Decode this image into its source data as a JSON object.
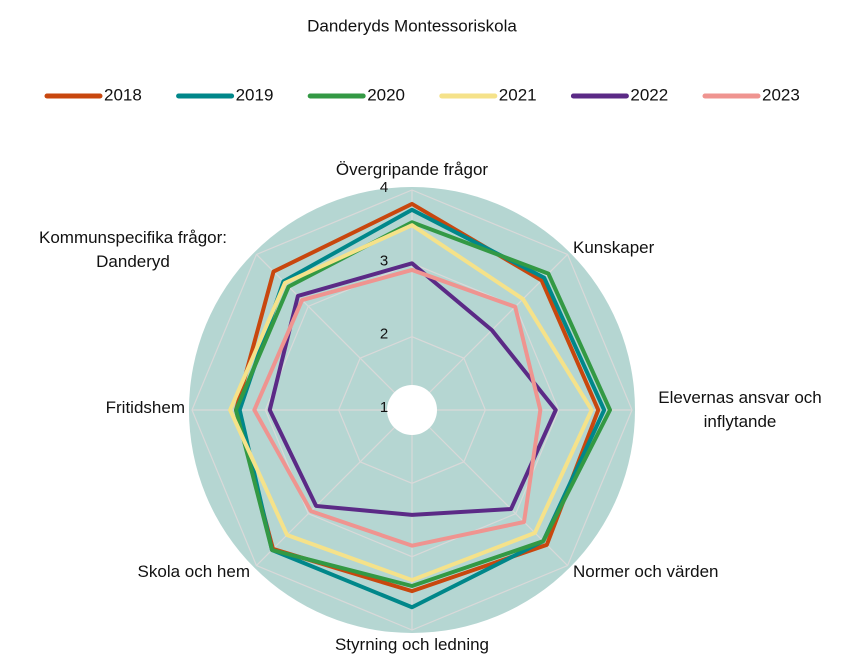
{
  "chart_data": {
    "type": "radar",
    "title": "Danderyds Montessoriskola",
    "categories": [
      "Övergripande frågor",
      "Kunskaper",
      "Elevernas ansvar och inflytande",
      "Normer och värden",
      "Styrning och ledning",
      "Skola och hem",
      "Fritidshem",
      "Kommunspecifika frågor: Danderyd"
    ],
    "rlim": [
      1,
      4
    ],
    "rticks": [
      1,
      2,
      3,
      4
    ],
    "grid": true,
    "legend": "top",
    "background": "#b5d6d2",
    "series": [
      {
        "name": "2018",
        "color": "#c8470e",
        "values": [
          3.81,
          3.5,
          3.54,
          3.6,
          3.47,
          3.68,
          3.4,
          3.67
        ]
      },
      {
        "name": "2019",
        "color": "#00878a",
        "values": [
          3.73,
          3.55,
          3.62,
          3.53,
          3.69,
          3.7,
          3.35,
          3.48
        ]
      },
      {
        "name": "2020",
        "color": "#339944",
        "values": [
          3.56,
          3.63,
          3.7,
          3.53,
          3.4,
          3.7,
          3.4,
          3.38
        ]
      },
      {
        "name": "2021",
        "color": "#f5e28a",
        "values": [
          3.52,
          3.14,
          3.45,
          3.37,
          3.32,
          3.41,
          3.48,
          3.45
        ]
      },
      {
        "name": "2022",
        "color": "#5b2a86",
        "values": [
          3.0,
          2.54,
          2.96,
          2.91,
          2.43,
          2.85,
          2.94,
          3.2
        ]
      },
      {
        "name": "2023",
        "color": "#ef9490",
        "values": [
          2.91,
          2.99,
          2.75,
          3.16,
          2.85,
          2.95,
          3.15,
          3.12
        ]
      }
    ]
  }
}
